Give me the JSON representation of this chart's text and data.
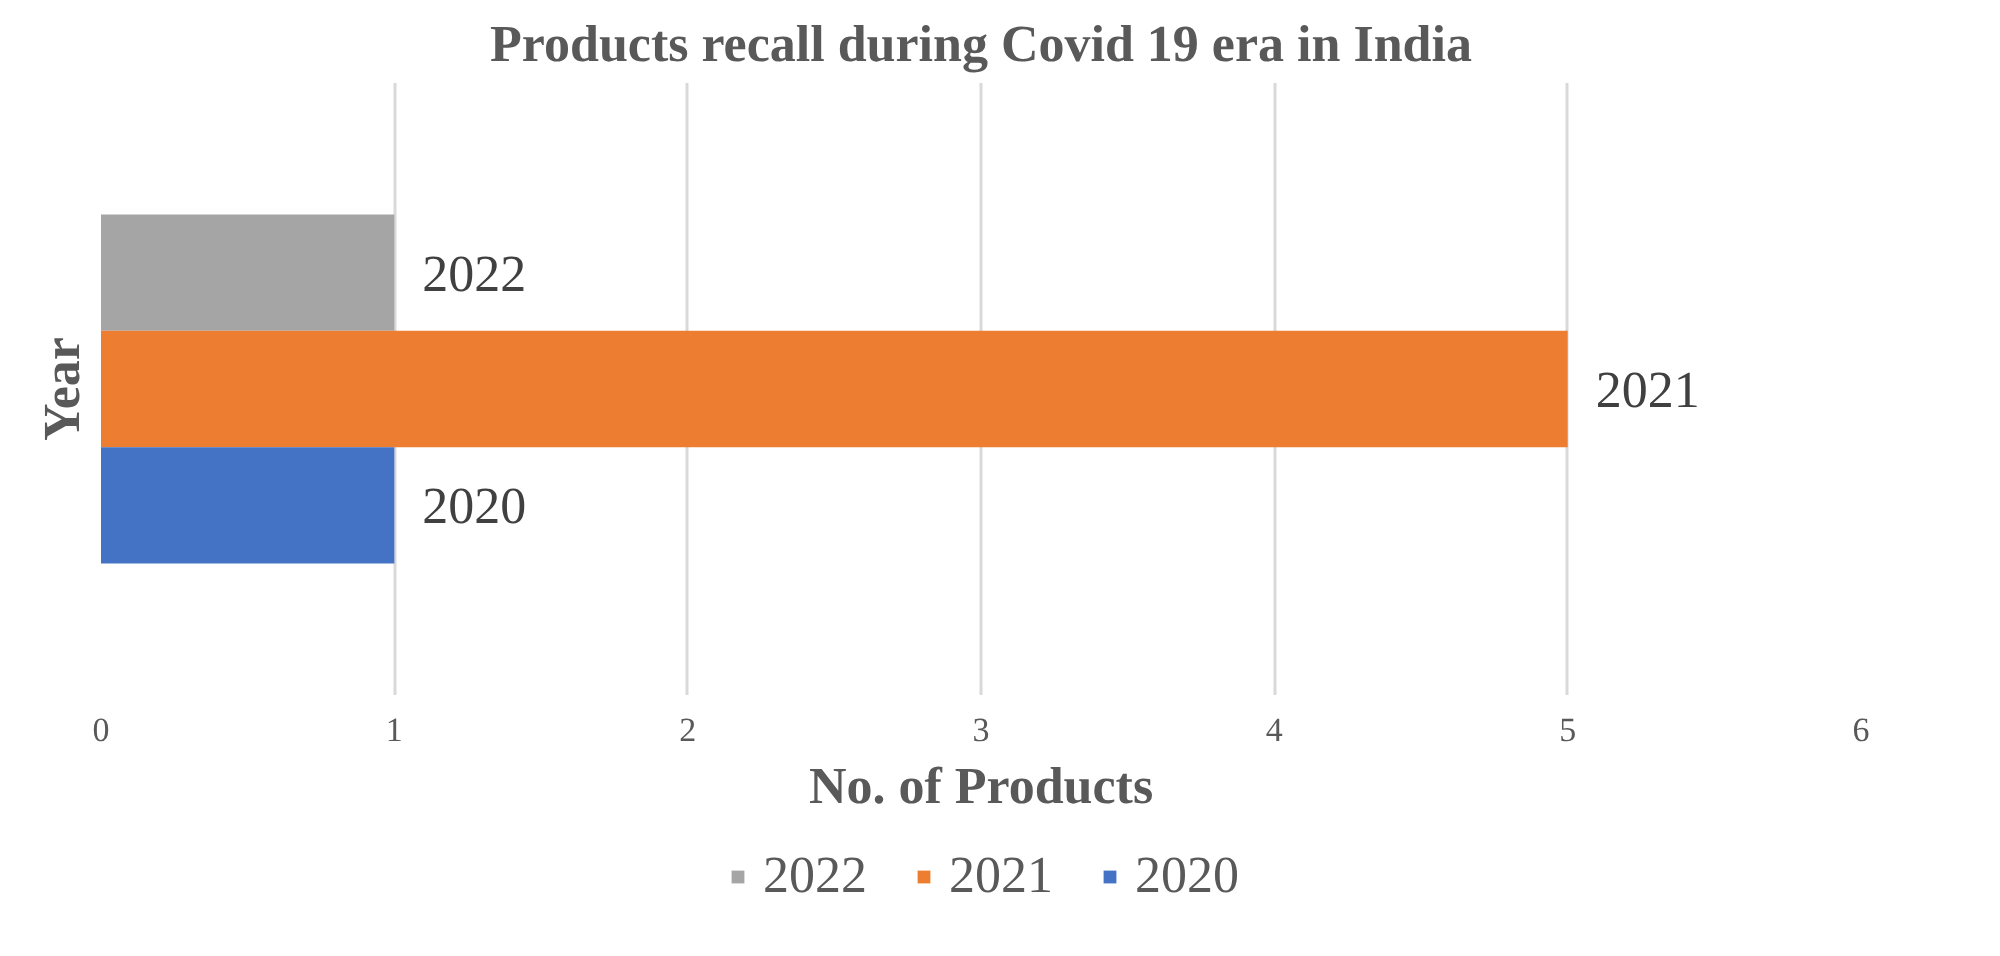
{
  "chart_data": {
    "type": "bar",
    "orientation": "horizontal",
    "title": "Products recall during Covid 19 era in India",
    "xlabel": "No. of Products",
    "ylabel": "Year",
    "categories": [
      null
    ],
    "series": [
      {
        "name": "2022",
        "color": "#a5a5a5",
        "values": [
          1
        ]
      },
      {
        "name": "2021",
        "color": "#ed7d31",
        "values": [
          5
        ]
      },
      {
        "name": "2020",
        "color": "#4472c4",
        "values": [
          1
        ]
      }
    ],
    "xlim": [
      0,
      6
    ],
    "xticks": [
      0,
      1,
      2,
      3,
      4,
      5,
      6
    ],
    "grid": "x",
    "legend": "bottom"
  }
}
